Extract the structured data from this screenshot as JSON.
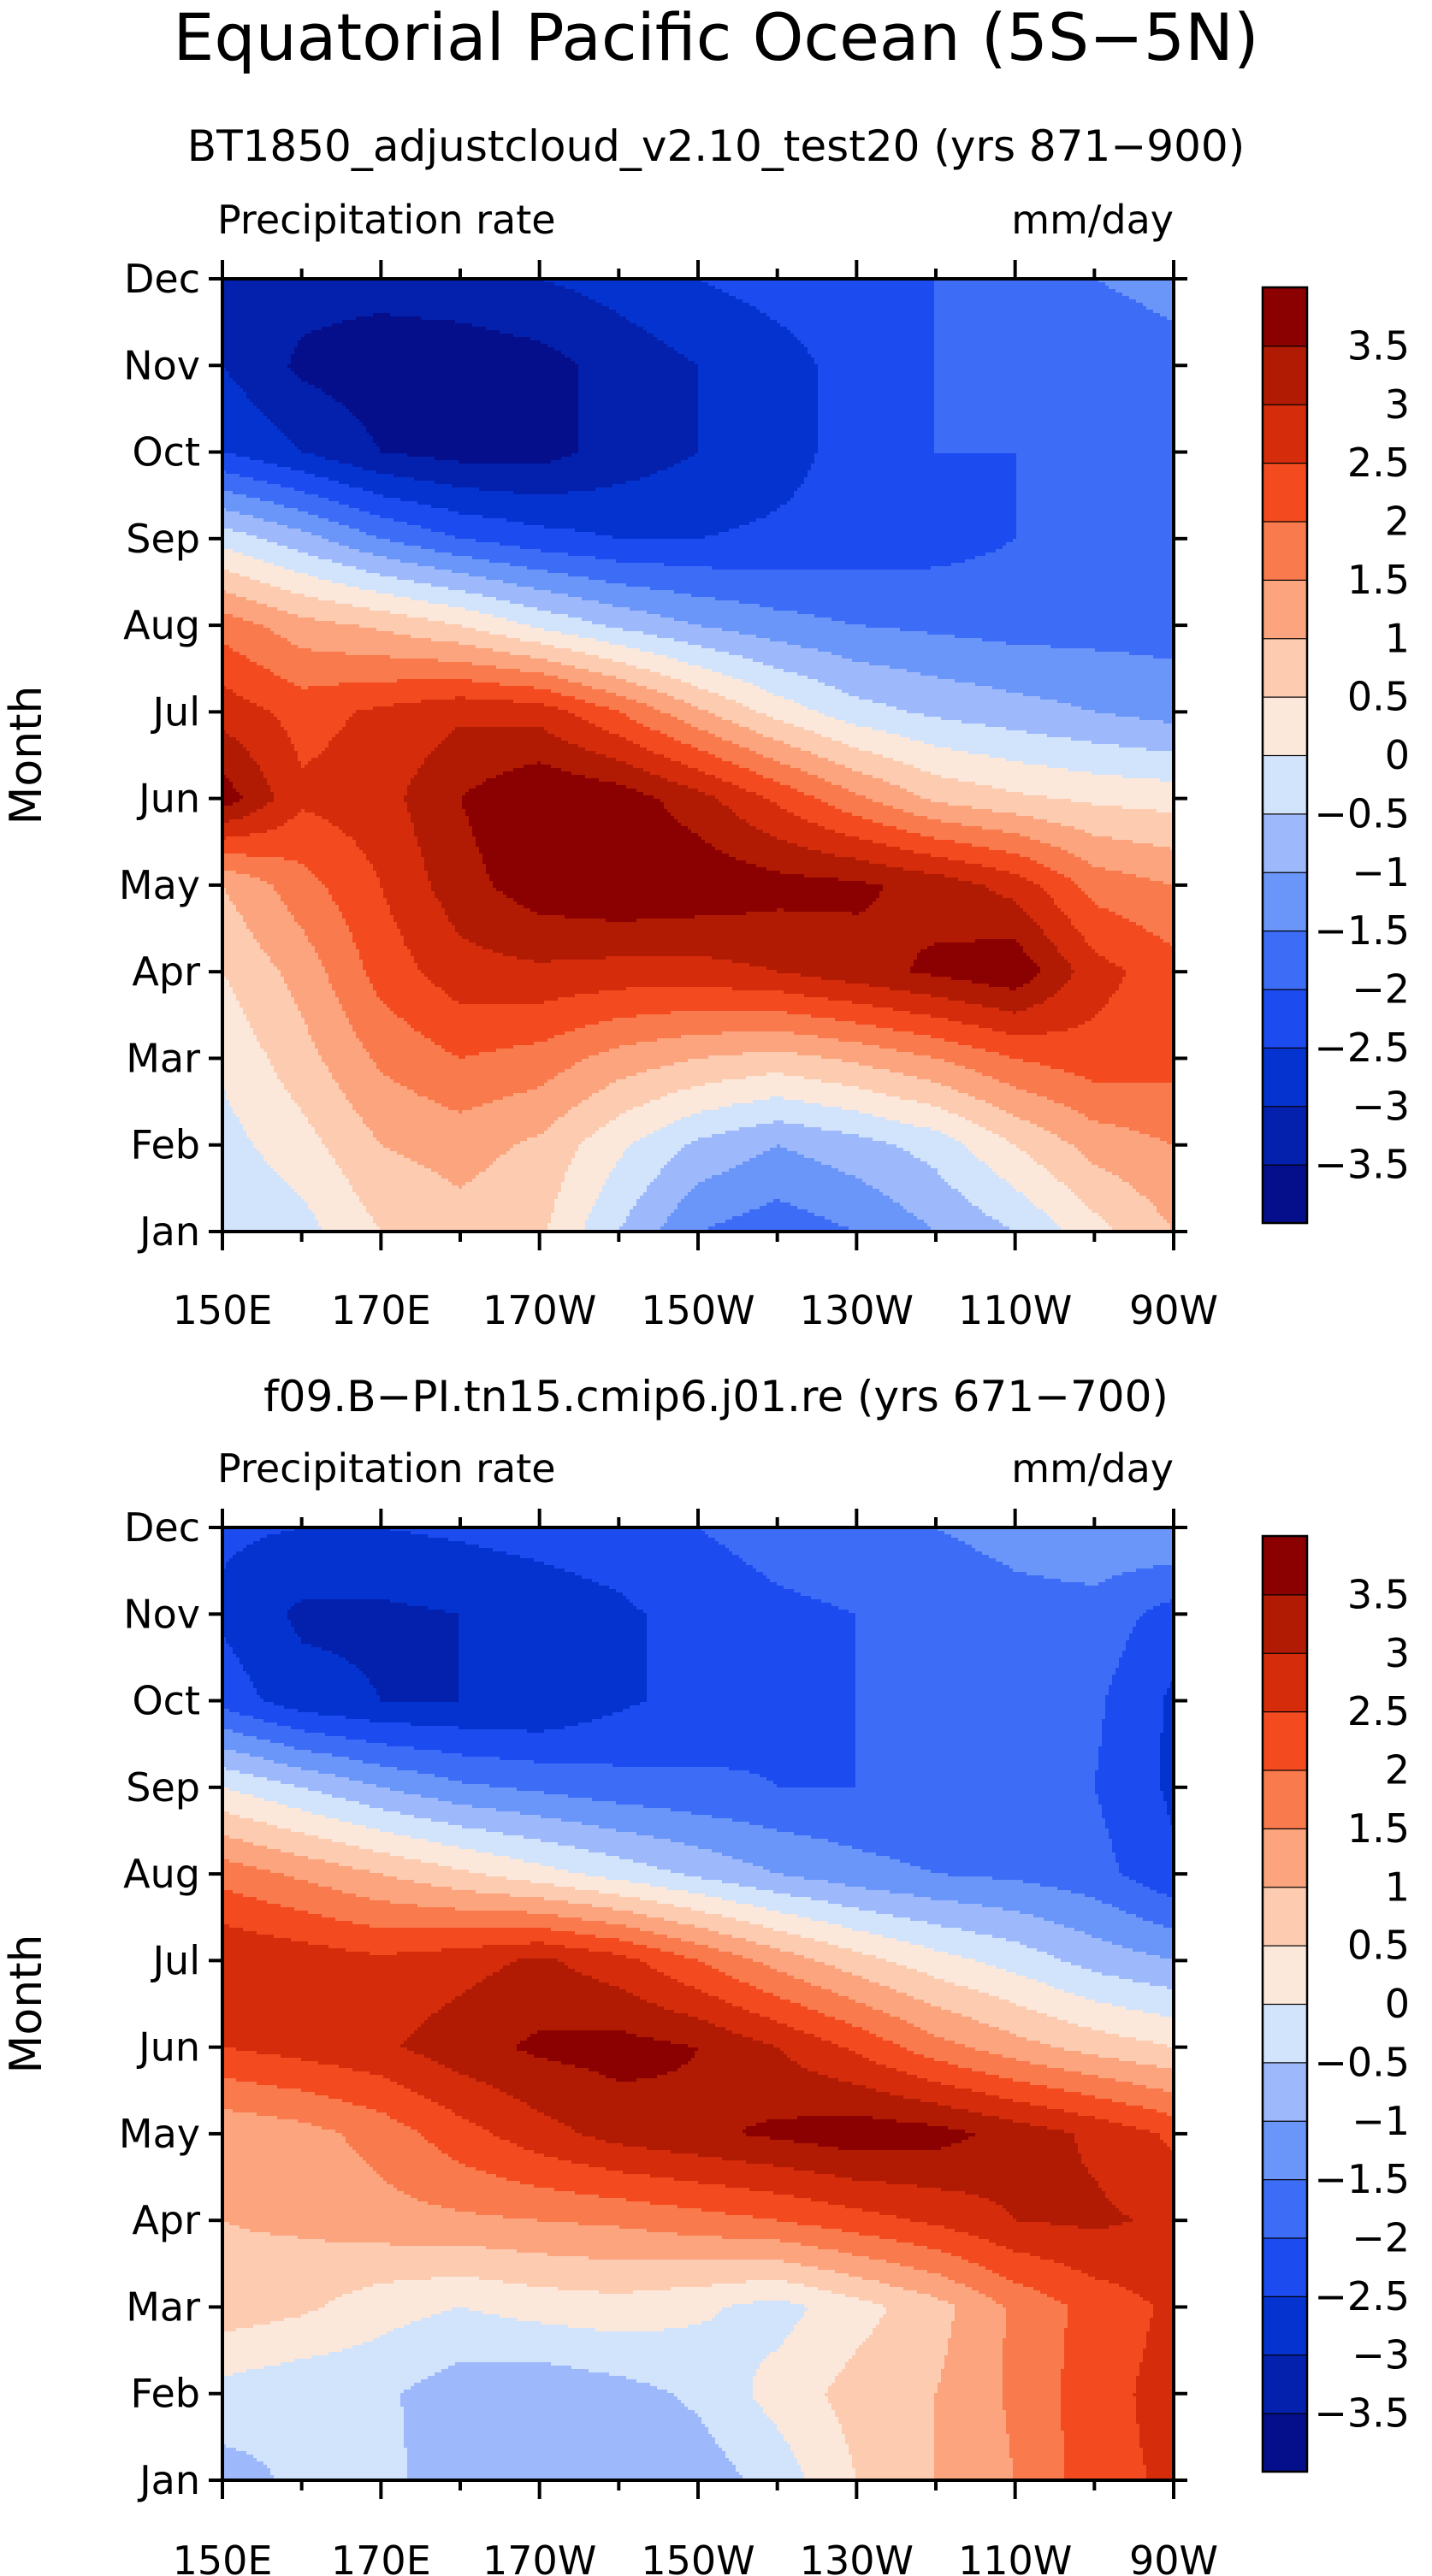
{
  "figure_title": "Equatorial Pacific Ocean (5S−5N)",
  "colorbar": {
    "colors": [
      "#050f8c",
      "#0321ad",
      "#0533cf",
      "#1c4bf0",
      "#3d6df7",
      "#6a95f9",
      "#9db9fb",
      "#d2e3fc",
      "#fce8db",
      "#fccbb0",
      "#fba47e",
      "#f97a4c",
      "#f34b1f",
      "#d52c0b",
      "#b11b04",
      "#8b0000"
    ],
    "labels": [
      "3.5",
      "3",
      "2.5",
      "2",
      "1.5",
      "1",
      "0.5",
      "0",
      "−0.5",
      "−1",
      "−1.5",
      "−2",
      "−2.5",
      "−3",
      "−3.5"
    ]
  },
  "chart_data": [
    {
      "type": "heatmap",
      "title": "BT1850_adjustcloud_v2.10_test20 (yrs 871−900)",
      "variable": "Precipitation rate",
      "units": "mm/day",
      "xlabel": "",
      "ylabel": "Month",
      "x_ticks": [
        "150E",
        "170E",
        "170W",
        "150W",
        "130W",
        "110W",
        "90W"
      ],
      "y_ticks": [
        "Jan",
        "Feb",
        "Mar",
        "Apr",
        "May",
        "Jun",
        "Jul",
        "Aug",
        "Sep",
        "Oct",
        "Nov",
        "Dec"
      ],
      "xlim": [
        150,
        270
      ],
      "levels": [
        -3.5,
        -3,
        -2.5,
        -2,
        -1.5,
        -1,
        -0.5,
        0,
        0.5,
        1,
        1.5,
        2,
        2.5,
        3,
        3.5
      ],
      "x": [
        150,
        160,
        170,
        180,
        190,
        200,
        210,
        220,
        230,
        240,
        250,
        260,
        270
      ],
      "grid": [
        [
          -0.5,
          -0.2,
          0.5,
          0.8,
          0.6,
          -0.5,
          -1.5,
          -1.8,
          -1.5,
          -1.0,
          -0.5,
          0.3,
          1.0
        ],
        [
          -0.2,
          0.3,
          1.0,
          1.2,
          0.9,
          0.1,
          -0.6,
          -1.0,
          -0.7,
          -0.3,
          0.5,
          1.2,
          1.5
        ],
        [
          0.1,
          0.8,
          1.6,
          2.0,
          1.8,
          1.3,
          1.0,
          0.8,
          1.1,
          1.5,
          2.0,
          2.3,
          2.2
        ],
        [
          0.5,
          1.2,
          2.2,
          2.8,
          2.9,
          2.8,
          2.8,
          3.0,
          3.3,
          3.6,
          3.9,
          2.7,
          2.2
        ],
        [
          1.0,
          1.8,
          2.5,
          3.3,
          3.8,
          4.0,
          3.9,
          3.7,
          3.6,
          3.3,
          2.8,
          1.8,
          1.5
        ],
        [
          3.8,
          2.6,
          2.8,
          3.5,
          4.0,
          3.8,
          3.2,
          2.4,
          1.6,
          0.9,
          0.6,
          0.4,
          0.3
        ],
        [
          2.8,
          2.3,
          2.6,
          2.9,
          2.8,
          2.0,
          1.1,
          0.3,
          -0.3,
          -0.6,
          -0.8,
          -1.0,
          -1.2
        ],
        [
          1.8,
          1.2,
          0.9,
          0.5,
          -0.1,
          -0.6,
          -1.0,
          -1.3,
          -1.5,
          -1.6,
          -1.7,
          -1.7,
          -1.7
        ],
        [
          -0.2,
          -0.8,
          -1.5,
          -2.0,
          -2.3,
          -2.5,
          -2.5,
          -2.4,
          -2.3,
          -2.2,
          -2.0,
          -2.0,
          -1.8
        ],
        [
          -2.5,
          -3.0,
          -3.5,
          -3.7,
          -3.7,
          -3.3,
          -3.0,
          -2.7,
          -2.3,
          -2.0,
          -2.0,
          -1.8,
          -1.7
        ],
        [
          -3.0,
          -3.6,
          -3.8,
          -3.8,
          -3.7,
          -3.3,
          -3.0,
          -2.7,
          -2.3,
          -2.0,
          -1.9,
          -1.7,
          -1.6
        ],
        [
          -3.2,
          -3.3,
          -3.3,
          -3.2,
          -3.0,
          -2.8,
          -2.5,
          -2.3,
          -2.2,
          -2.0,
          -1.8,
          -1.5,
          -1.4
        ]
      ]
    },
    {
      "type": "heatmap",
      "title": "f09.B−PI.tn15.cmip6.j01.re (yrs 671−700)",
      "variable": "Precipitation rate",
      "units": "mm/day",
      "xlabel": "",
      "ylabel": "Month",
      "x_ticks": [
        "150E",
        "170E",
        "170W",
        "150W",
        "130W",
        "110W",
        "90W"
      ],
      "y_ticks": [
        "Jan",
        "Feb",
        "Mar",
        "Apr",
        "May",
        "Jun",
        "Jul",
        "Aug",
        "Sep",
        "Oct",
        "Nov",
        "Dec"
      ],
      "xlim": [
        150,
        270
      ],
      "levels": [
        -3.5,
        -3,
        -2.5,
        -2,
        -1.5,
        -1,
        -0.5,
        0,
        0.5,
        1,
        1.5,
        2,
        2.5,
        3,
        3.5
      ],
      "x": [
        150,
        160,
        170,
        180,
        190,
        200,
        210,
        220,
        230,
        240,
        250,
        260,
        270
      ],
      "grid": [
        [
          -0.7,
          -0.4,
          -0.3,
          -0.9,
          -1.0,
          -1.0,
          -0.8,
          -0.3,
          0.5,
          1.0,
          1.5,
          2.3,
          2.6
        ],
        [
          -0.2,
          -0.4,
          -0.4,
          -0.8,
          -0.9,
          -0.7,
          -0.4,
          0.2,
          0.7,
          1.0,
          1.6,
          2.3,
          2.7
        ],
        [
          0.8,
          0.6,
          0.2,
          0.0,
          0.2,
          0.3,
          0.1,
          -0.2,
          0.3,
          0.8,
          1.6,
          2.2,
          2.6
        ],
        [
          1.0,
          1.1,
          1.3,
          1.4,
          1.5,
          1.6,
          1.8,
          2.0,
          2.3,
          2.6,
          3.0,
          3.1,
          2.9
        ],
        [
          1.1,
          1.3,
          1.7,
          2.3,
          2.8,
          3.2,
          3.4,
          3.6,
          3.8,
          3.7,
          3.3,
          2.9,
          2.4
        ],
        [
          2.5,
          2.7,
          2.9,
          3.3,
          3.6,
          3.7,
          3.5,
          3.0,
          2.4,
          1.7,
          1.2,
          0.8,
          0.5
        ],
        [
          3.0,
          2.8,
          2.6,
          2.8,
          3.1,
          2.7,
          2.0,
          1.3,
          0.7,
          0.2,
          -0.2,
          -0.7,
          -1.0
        ],
        [
          1.8,
          1.4,
          1.0,
          0.6,
          0.2,
          -0.2,
          -0.6,
          -1.0,
          -1.3,
          -1.5,
          -1.6,
          -1.8,
          -2.4
        ],
        [
          0.0,
          -0.5,
          -1.0,
          -1.4,
          -1.6,
          -1.8,
          -1.9,
          -2.0,
          -2.0,
          -2.0,
          -2.0,
          -2.0,
          -2.6
        ],
        [
          -2.2,
          -2.8,
          -3.0,
          -3.0,
          -3.0,
          -2.6,
          -2.3,
          -2.1,
          -2.0,
          -1.9,
          -1.9,
          -1.9,
          -2.6
        ],
        [
          -2.6,
          -3.1,
          -3.1,
          -3.0,
          -2.8,
          -2.6,
          -2.3,
          -2.1,
          -2.0,
          -1.9,
          -1.7,
          -1.7,
          -2.2
        ],
        [
          -2.4,
          -2.5,
          -2.5,
          -2.4,
          -2.3,
          -2.2,
          -2.0,
          -1.8,
          -1.7,
          -1.5,
          -1.3,
          -1.1,
          -1.0
        ]
      ]
    }
  ]
}
